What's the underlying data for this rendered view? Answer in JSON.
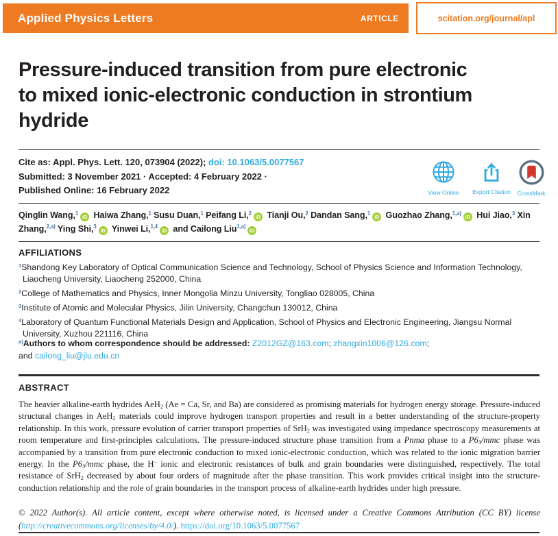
{
  "banner": {
    "journal": "Applied Physics Letters",
    "article_label": "ARTICLE",
    "site_url": "scitation.org/journal/apl"
  },
  "title_rich": [
    {
      "t": "Pressure-induced transition from pure electronic"
    },
    {
      "br": 1
    },
    {
      "t": "to mixed ionic-electronic conduction in strontium"
    },
    {
      "br": 1
    },
    {
      "t": "hydride"
    }
  ],
  "cite": {
    "line1": [
      {
        "t": "Cite as: Appl. Phys. Lett. "
      },
      {
        "t": "120",
        "b": 1
      },
      {
        "t": ", 073904 (2022); "
      },
      {
        "t": "doi: 10.1063/5.0077567",
        "c": "b1",
        "n": "doi-link"
      }
    ],
    "line2": [
      {
        "t": "Submitted: 3 November 2021 · Accepted: 4 February 2022 ·"
      }
    ],
    "line3": [
      {
        "t": "Published Online: 16 February 2022"
      }
    ]
  },
  "actions": {
    "view_online": "View Online",
    "export_citation": "Export Citation",
    "crossmark": "CrossMark"
  },
  "authors_rich": [
    {
      "t": "Qinglin Wang,",
      "b": 1
    },
    {
      "t": "1",
      "sup": 1,
      "c": "b2"
    },
    {
      "icon": "orcid"
    },
    {
      "t": " Haiwa Zhang,",
      "b": 1
    },
    {
      "t": "1",
      "sup": 1,
      "c": "b2"
    },
    {
      "t": " Susu Duan,",
      "b": 1
    },
    {
      "t": "1",
      "sup": 1,
      "c": "b2"
    },
    {
      "t": " Peifang Li,",
      "b": 1
    },
    {
      "t": "2",
      "sup": 1,
      "c": "b2"
    },
    {
      "icon": "orcid"
    },
    {
      "t": " Tianji Ou,",
      "b": 1
    },
    {
      "t": "2",
      "sup": 1,
      "c": "b2"
    },
    {
      "t": " Dandan Sang,",
      "b": 1
    },
    {
      "t": "1",
      "sup": 1,
      "c": "b2"
    },
    {
      "icon": "orcid"
    },
    {
      "t": " Guozhao Zhang,",
      "b": 1
    },
    {
      "t": "1,a)",
      "sup": 1,
      "c": "b2"
    },
    {
      "icon": "orcid"
    },
    {
      "t": " Hui Jiao,",
      "b": 1
    },
    {
      "t": "3",
      "sup": 1,
      "c": "b2"
    },
    {
      "t": " Xin Zhang,",
      "b": 1
    },
    {
      "t": "2,a)",
      "sup": 1,
      "c": "b2"
    },
    {
      "t": " Ying Shi,",
      "b": 1
    },
    {
      "t": "3",
      "sup": 1,
      "c": "b2"
    },
    {
      "icon": "orcid"
    },
    {
      "t": " Yinwei Li,",
      "b": 1
    },
    {
      "t": "1,4",
      "sup": 1,
      "c": "b2"
    },
    {
      "icon": "orcid"
    },
    {
      "t": " and Cailong Liu",
      "b": 1
    },
    {
      "t": "1,a)",
      "sup": 1,
      "c": "b2"
    },
    {
      "icon": "orcid"
    }
  ],
  "affiliations": {
    "heading": "AFFILIATIONS",
    "items_rich": [
      [
        {
          "t": "1",
          "sup": 1,
          "c": "b2"
        },
        {
          "t": "Shandong Key Laboratory of Optical Communication Science and Technology, School of Physics Science and Information Technology, Liaocheng University, Liaocheng 252000, China"
        }
      ],
      [
        {
          "t": "2",
          "sup": 1,
          "c": "b2"
        },
        {
          "t": "College of Mathematics and Physics, Inner Mongolia Minzu University, Tongliao 028005, China"
        }
      ],
      [
        {
          "t": "3",
          "sup": 1,
          "c": "b2"
        },
        {
          "t": "Institute of Atomic and Molecular Physics, Jilin University, Changchun 130012, China"
        }
      ],
      [
        {
          "t": "4",
          "sup": 1,
          "c": "b2"
        },
        {
          "t": "Laboratory of Quantum Functional Materials Design and Application, School of Physics and Electronic Engineering, Jiangsu Normal University, Xuzhou 221116, China"
        }
      ]
    ]
  },
  "correspondence_rich": [
    {
      "t": "a)",
      "sup": 1,
      "c": "b2"
    },
    {
      "t": "Authors to whom correspondence should be addressed: ",
      "b": 1
    },
    {
      "t": "Z2012GZ@163.com",
      "c": "b1",
      "n": "email-link-1"
    },
    {
      "t": "; "
    },
    {
      "t": "zhangxin1006@126.com",
      "c": "b1",
      "n": "email-link-2"
    },
    {
      "t": ";"
    },
    {
      "br": 1
    },
    {
      "t": "and "
    },
    {
      "t": "cailong_liu@jlu.edu.cn",
      "c": "b1",
      "n": "email-link-3"
    }
  ],
  "abstract": {
    "heading": "ABSTRACT",
    "body_rich": [
      {
        "t": "The heavier alkaline-earth hydrides AeH"
      },
      {
        "t": "2",
        "sub": 1
      },
      {
        "t": " (Ae = Ca, Sr, and Ba) are considered as promising materials for hydrogen energy storage. Pressure-induced structural changes in AeH"
      },
      {
        "t": "2",
        "sub": 1
      },
      {
        "t": " materials could improve hydrogen transport properties and result in a better understanding of the structure-property relationship. In this work, pressure evolution of carrier transport properties of SrH"
      },
      {
        "t": "2",
        "sub": 1
      },
      {
        "t": " was investigated using impedance spectroscopy measurements at room temperature and first-principles calculations. The pressure-induced structure phase transition from a "
      },
      {
        "t": "Pnma",
        "i": 1
      },
      {
        "t": " phase to a "
      },
      {
        "t": "P6",
        "i": 1
      },
      {
        "t": "3",
        "sub": 1,
        "i": 1
      },
      {
        "t": "/mmc",
        "i": 1
      },
      {
        "t": " phase was accompanied by a transition from pure electronic conduction to mixed ionic-electronic conduction, which was related to the ionic migration barrier energy. In the "
      },
      {
        "t": "P6",
        "i": 1
      },
      {
        "t": "3",
        "sub": 1,
        "i": 1
      },
      {
        "t": "/mmc",
        "i": 1
      },
      {
        "t": " phase, the H"
      },
      {
        "t": "−",
        "sup": 1
      },
      {
        "t": " ionic and electronic resistances of bulk and grain boundaries were distinguished, respectively. The total resistance of SrH"
      },
      {
        "t": "2",
        "sub": 1
      },
      {
        "t": " decreased by about four orders of magnitude after the phase transition. This work provides critical insight into the structure-conduction relationship and the role of grain boundaries in the transport process of alkaline-earth hydrides under high pressure."
      }
    ]
  },
  "copyright_rich": [
    {
      "t": "© 2022 Author(s). All article content, except where otherwise noted, is licensed under a Creative Commons Attribution (CC BY) license (",
      "i": 1
    },
    {
      "t": "http://creativecommons.org/licenses/by/4.0/",
      "i": 1,
      "c": "b1",
      "n": "cc-license-link"
    },
    {
      "t": "). ",
      "i": 1
    },
    {
      "t": "https://doi.org/10.1063/5.0077567",
      "c": "b1",
      "n": "footer-doi-link"
    }
  ],
  "colors": {
    "orange": "#ee7b21",
    "link_blue": "#2faae1",
    "superscript_blue": "#4377a5",
    "orcid_green": "#a6ce39",
    "text_dark": "#231f20",
    "crossmark_ring": "#5a6f80",
    "crossmark_red": "#d0382e"
  }
}
